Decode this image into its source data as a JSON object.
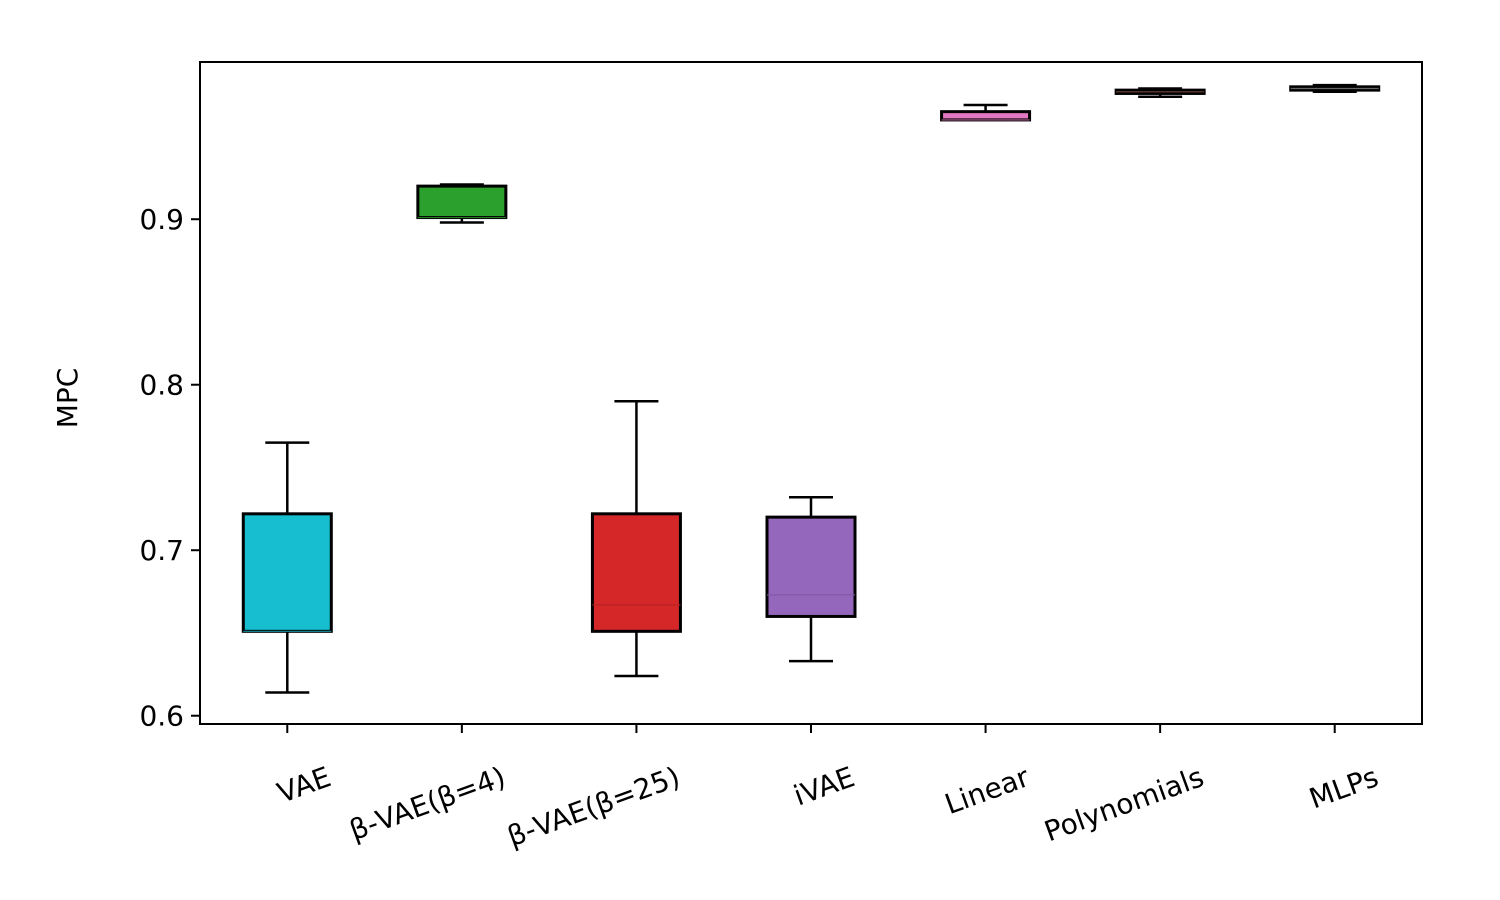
{
  "chart_data": {
    "type": "box",
    "title": "",
    "xlabel": "",
    "ylabel": "MPC",
    "ylim": [
      0.595,
      0.995
    ],
    "yticks": [
      0.6,
      0.7,
      0.8,
      0.9
    ],
    "ytick_labels": [
      "0.6",
      "0.7",
      "0.8",
      "0.9"
    ],
    "grid": false,
    "categories": [
      "VAE",
      "β-VAE(β=4)",
      "β-VAE(β=25)",
      "iVAE",
      "Linear",
      "Polynomials",
      "MLPs"
    ],
    "boxes": [
      {
        "category": "VAE",
        "whisker_low": 0.614,
        "q1": 0.651,
        "median": 0.651,
        "q3": 0.722,
        "whisker_high": 0.765,
        "color": "#17becf"
      },
      {
        "category": "β-VAE(β=4)",
        "whisker_low": 0.898,
        "q1": 0.901,
        "median": 0.901,
        "q3": 0.92,
        "whisker_high": 0.921,
        "color": "#2ca02c"
      },
      {
        "category": "β-VAE(β=25)",
        "whisker_low": 0.624,
        "q1": 0.651,
        "median": 0.667,
        "q3": 0.722,
        "whisker_high": 0.79,
        "color": "#d62728"
      },
      {
        "category": "iVAE",
        "whisker_low": 0.633,
        "q1": 0.66,
        "median": 0.673,
        "q3": 0.72,
        "whisker_high": 0.732,
        "color": "#9467bd"
      },
      {
        "category": "Linear",
        "whisker_low": 0.96,
        "q1": 0.96,
        "median": 0.96,
        "q3": 0.965,
        "whisker_high": 0.969,
        "color": "#e377c2"
      },
      {
        "category": "Polynomials",
        "whisker_low": 0.974,
        "q1": 0.976,
        "median": 0.977,
        "q3": 0.978,
        "whisker_high": 0.979,
        "color": "#8c564b"
      },
      {
        "category": "MLPs",
        "whisker_low": 0.977,
        "q1": 0.978,
        "median": 0.979,
        "q3": 0.98,
        "whisker_high": 0.981,
        "color": "#7f7f7f"
      }
    ]
  }
}
